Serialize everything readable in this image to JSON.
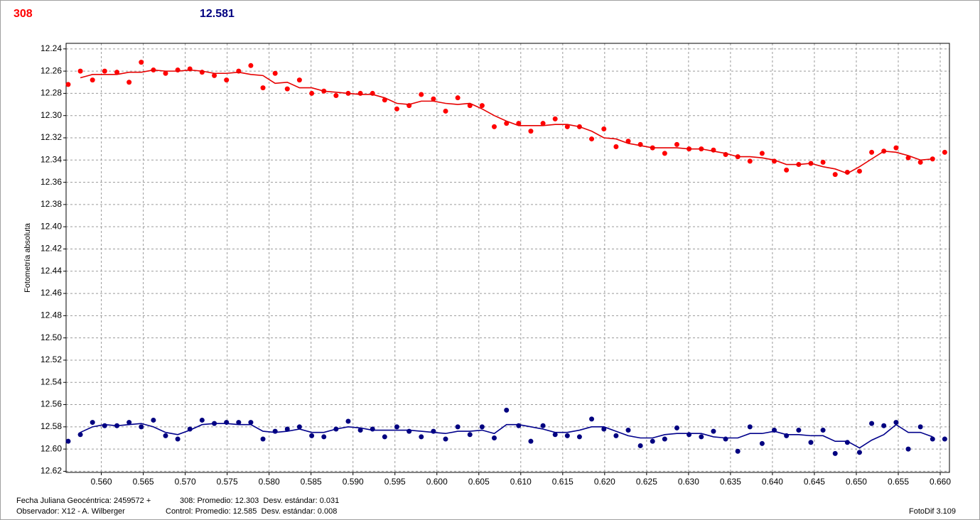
{
  "header": {
    "value": "12.581"
  },
  "chart_data": {
    "type": "scatter",
    "y_label": "Fotometría absoluta",
    "xlim": [
      0.5558,
      0.6611
    ],
    "ylim": [
      12.621,
      12.235
    ],
    "grid": true,
    "xticks": [
      {
        "value": 0.56,
        "label": "0.560"
      },
      {
        "value": 0.565,
        "label": "0.565"
      },
      {
        "value": 0.57,
        "label": "0.570"
      },
      {
        "value": 0.575,
        "label": "0.575"
      },
      {
        "value": 0.58,
        "label": "0.580"
      },
      {
        "value": 0.585,
        "label": "0.585"
      },
      {
        "value": 0.59,
        "label": "0.590"
      },
      {
        "value": 0.595,
        "label": "0.595"
      },
      {
        "value": 0.6,
        "label": "0.600"
      },
      {
        "value": 0.605,
        "label": "0.605"
      },
      {
        "value": 0.61,
        "label": "0.610"
      },
      {
        "value": 0.615,
        "label": "0.615"
      },
      {
        "value": 0.62,
        "label": "0.620"
      },
      {
        "value": 0.625,
        "label": "0.625"
      },
      {
        "value": 0.63,
        "label": "0.630"
      },
      {
        "value": 0.635,
        "label": "0.635"
      },
      {
        "value": 0.64,
        "label": "0.640"
      },
      {
        "value": 0.645,
        "label": "0.645"
      },
      {
        "value": 0.65,
        "label": "0.650"
      },
      {
        "value": 0.655,
        "label": "0.655"
      },
      {
        "value": 0.66,
        "label": "0.660"
      }
    ],
    "yticks": [
      12.24,
      12.26,
      12.28,
      {
        "value": 12.3,
        "label": "12.30"
      },
      12.32,
      12.34,
      12.36,
      12.38,
      {
        "value": 12.4,
        "label": "12.40"
      },
      12.42,
      12.44,
      12.46,
      12.48,
      {
        "value": 12.5,
        "label": "12.50"
      },
      12.52,
      12.54,
      12.56,
      12.58,
      {
        "value": 12.6,
        "label": "12.60"
      },
      12.62
    ],
    "x": [
      0.55605,
      0.5575,
      0.55895,
      0.5604,
      0.56186,
      0.56331,
      0.56476,
      0.56621,
      0.56766,
      0.56911,
      0.57056,
      0.57201,
      0.57347,
      0.57492,
      0.57637,
      0.57782,
      0.57927,
      0.58072,
      0.58217,
      0.58362,
      0.58508,
      0.58653,
      0.58798,
      0.58943,
      0.59088,
      0.59233,
      0.59378,
      0.59523,
      0.59669,
      0.59814,
      0.59959,
      0.60104,
      0.60249,
      0.60394,
      0.60539,
      0.60684,
      0.6083,
      0.60975,
      0.6112,
      0.61265,
      0.6141,
      0.61555,
      0.617,
      0.61845,
      0.61991,
      0.62136,
      0.62281,
      0.62426,
      0.62571,
      0.62716,
      0.62861,
      0.63006,
      0.63152,
      0.63297,
      0.63442,
      0.63587,
      0.63732,
      0.63877,
      0.64022,
      0.64167,
      0.64313,
      0.64458,
      0.64603,
      0.64748,
      0.64893,
      0.65038,
      0.65183,
      0.65328,
      0.65474,
      0.65619,
      0.65764,
      0.65909,
      0.66054
    ],
    "series": [
      {
        "name": "308",
        "style": "markers",
        "color": "#ff0000",
        "values": [
          12.272,
          12.26,
          12.268,
          12.26,
          12.261,
          12.27,
          12.252,
          12.259,
          12.262,
          12.259,
          12.258,
          12.261,
          12.264,
          12.268,
          12.26,
          12.255,
          12.275,
          12.262,
          12.276,
          12.268,
          12.28,
          12.278,
          12.282,
          12.28,
          12.28,
          12.28,
          12.286,
          12.294,
          12.291,
          12.281,
          12.285,
          12.296,
          12.284,
          12.291,
          12.291,
          12.31,
          12.307,
          12.307,
          12.314,
          12.307,
          12.303,
          12.31,
          12.31,
          12.321,
          12.312,
          12.328,
          12.323,
          12.326,
          12.329,
          12.334,
          12.326,
          12.33,
          12.33,
          12.331,
          12.335,
          12.337,
          12.341,
          12.334,
          12.341,
          12.349,
          12.344,
          12.343,
          12.342,
          12.353,
          12.351,
          12.35,
          12.333,
          12.332,
          12.329,
          12.338,
          12.342,
          12.339,
          12.333
        ]
      },
      {
        "style": "markers",
        "color": "#000080",
        "values": [
          12.593,
          12.587,
          12.576,
          12.579,
          12.579,
          12.576,
          12.58,
          12.574,
          12.588,
          12.591,
          12.582,
          12.574,
          12.577,
          12.576,
          12.576,
          12.576,
          12.591,
          12.584,
          12.582,
          12.58,
          12.588,
          12.589,
          12.582,
          12.575,
          12.583,
          12.582,
          12.589,
          12.58,
          12.584,
          12.589,
          12.584,
          12.591,
          12.58,
          12.587,
          12.58,
          12.59,
          12.565,
          12.579,
          12.593,
          12.579,
          12.587,
          12.588,
          12.589,
          12.573,
          12.582,
          12.588,
          12.583,
          12.597,
          12.593,
          12.591,
          12.581,
          12.587,
          12.589,
          12.584,
          12.591,
          12.602,
          12.58,
          12.595,
          12.583,
          12.588,
          12.583,
          12.594,
          12.583,
          12.604,
          12.594,
          12.603,
          12.577,
          12.579,
          12.576,
          12.6,
          12.58,
          12.591,
          12.591
        ]
      },
      {
        "style": "line",
        "color": "#e60000",
        "values": [
          null,
          12.266,
          12.263,
          12.263,
          12.263,
          12.261,
          12.261,
          12.259,
          12.26,
          12.26,
          12.259,
          12.26,
          12.262,
          12.262,
          12.261,
          12.263,
          12.264,
          12.271,
          12.27,
          12.275,
          12.275,
          12.278,
          12.279,
          12.28,
          12.281,
          12.281,
          12.284,
          12.289,
          12.29,
          12.287,
          12.287,
          12.289,
          12.29,
          12.289,
          12.294,
          12.3,
          12.305,
          12.309,
          12.309,
          12.309,
          12.308,
          12.308,
          12.31,
          12.314,
          12.32,
          12.321,
          12.325,
          12.327,
          12.329,
          12.329,
          12.329,
          12.33,
          12.33,
          12.332,
          12.334,
          12.337,
          12.337,
          12.338,
          12.34,
          12.344,
          12.344,
          12.343,
          12.346,
          12.348,
          12.352,
          12.346,
          12.339,
          12.332,
          12.333,
          12.336,
          12.34,
          12.339,
          null
        ]
      },
      {
        "style": "line",
        "color": "#00008b",
        "values": [
          null,
          12.585,
          12.58,
          12.578,
          12.579,
          12.578,
          12.577,
          12.58,
          12.585,
          12.587,
          12.583,
          12.578,
          12.577,
          12.577,
          12.578,
          12.578,
          12.584,
          12.585,
          12.584,
          12.582,
          12.585,
          12.585,
          12.582,
          12.58,
          12.581,
          12.583,
          12.583,
          12.583,
          12.583,
          12.584,
          12.585,
          12.586,
          12.584,
          12.584,
          12.583,
          12.586,
          12.578,
          12.578,
          12.58,
          12.582,
          12.585,
          12.585,
          12.583,
          12.58,
          12.58,
          12.584,
          12.588,
          12.59,
          12.59,
          12.587,
          12.586,
          12.586,
          12.586,
          12.589,
          12.59,
          12.59,
          12.586,
          12.586,
          12.584,
          12.587,
          12.587,
          12.588,
          12.588,
          12.593,
          12.593,
          12.599,
          12.592,
          12.587,
          12.578,
          12.585,
          12.585,
          12.589,
          null
        ]
      }
    ]
  },
  "footer": {
    "date_line": "Fecha Juliana Geocéntrica: 2459572 +",
    "observer": "Observador: X12 - A. Wilberger",
    "target_stats": "308: Promedio: 12.303  Desv. estándar: 0.031",
    "control_stats": "Control: Promedio: 12.585  Desv. estándar: 0.008",
    "software": "FotoDif 3.109"
  }
}
